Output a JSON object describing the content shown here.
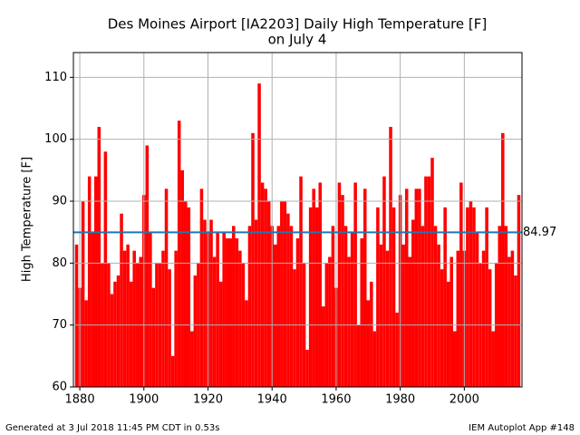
{
  "chart_data": {
    "type": "bar",
    "title": [
      "Des Moines Airport [IA2203] Daily High Temperature [F]",
      "on July 4"
    ],
    "ylabel": "High Temperature [F]",
    "x": [
      1879,
      1880,
      1881,
      1882,
      1883,
      1884,
      1885,
      1886,
      1887,
      1888,
      1889,
      1890,
      1891,
      1892,
      1893,
      1894,
      1895,
      1896,
      1897,
      1898,
      1899,
      1900,
      1901,
      1902,
      1903,
      1904,
      1905,
      1906,
      1907,
      1908,
      1909,
      1910,
      1911,
      1912,
      1913,
      1914,
      1915,
      1916,
      1917,
      1918,
      1919,
      1920,
      1921,
      1922,
      1923,
      1924,
      1925,
      1926,
      1927,
      1928,
      1929,
      1930,
      1931,
      1932,
      1933,
      1934,
      1935,
      1936,
      1937,
      1938,
      1939,
      1940,
      1941,
      1942,
      1943,
      1944,
      1945,
      1946,
      1947,
      1948,
      1949,
      1950,
      1951,
      1952,
      1953,
      1954,
      1955,
      1956,
      1957,
      1958,
      1959,
      1960,
      1961,
      1962,
      1963,
      1964,
      1965,
      1966,
      1967,
      1968,
      1969,
      1970,
      1971,
      1972,
      1973,
      1974,
      1975,
      1976,
      1977,
      1978,
      1979,
      1980,
      1981,
      1982,
      1983,
      1984,
      1985,
      1986,
      1987,
      1988,
      1989,
      1990,
      1991,
      1992,
      1993,
      1994,
      1995,
      1996,
      1997,
      1998,
      1999,
      2000,
      2001,
      2002,
      2003,
      2004,
      2005,
      2006,
      2007,
      2008,
      2009,
      2010,
      2011,
      2012,
      2013,
      2014,
      2015,
      2016,
      2017
    ],
    "values": [
      83,
      76,
      90,
      74,
      94,
      85,
      94,
      102,
      80,
      98,
      80,
      75,
      77,
      78,
      88,
      82,
      83,
      77,
      82,
      80,
      81,
      91,
      99,
      85,
      76,
      80,
      80,
      82,
      92,
      79,
      65,
      82,
      103,
      95,
      90,
      89,
      69,
      78,
      80,
      92,
      87,
      85,
      87,
      81,
      85,
      77,
      85,
      84,
      84,
      86,
      84,
      82,
      80,
      74,
      86,
      101,
      87,
      109,
      93,
      92,
      90,
      86,
      83,
      86,
      90,
      90,
      88,
      86,
      79,
      84,
      94,
      80,
      66,
      89,
      92,
      89,
      93,
      73,
      80,
      81,
      86,
      76,
      93,
      91,
      86,
      81,
      85,
      93,
      70,
      84,
      92,
      74,
      77,
      69,
      89,
      83,
      94,
      82,
      102,
      89,
      72,
      91,
      83,
      92,
      81,
      87,
      92,
      92,
      86,
      94,
      94,
      97,
      86,
      83,
      79,
      89,
      77,
      81,
      69,
      82,
      93,
      82,
      89,
      90,
      89,
      85,
      80,
      82,
      89,
      79,
      69,
      80,
      86,
      101,
      86,
      81,
      82,
      78,
      91
    ],
    "color": "#ff0000",
    "mean": 84.97,
    "mean_color": "#1f77b4",
    "xlim": [
      1878,
      2018
    ],
    "xticks": [
      1880,
      1900,
      1920,
      1940,
      1960,
      1980,
      2000
    ],
    "ylim": [
      60,
      114
    ],
    "yticks": [
      60,
      70,
      80,
      90,
      100,
      110
    ],
    "grid": true
  },
  "footer": {
    "left": "Generated at 3 Jul 2018 11:45 PM CDT in 0.53s",
    "right": "IEM Autoplot App #148"
  }
}
